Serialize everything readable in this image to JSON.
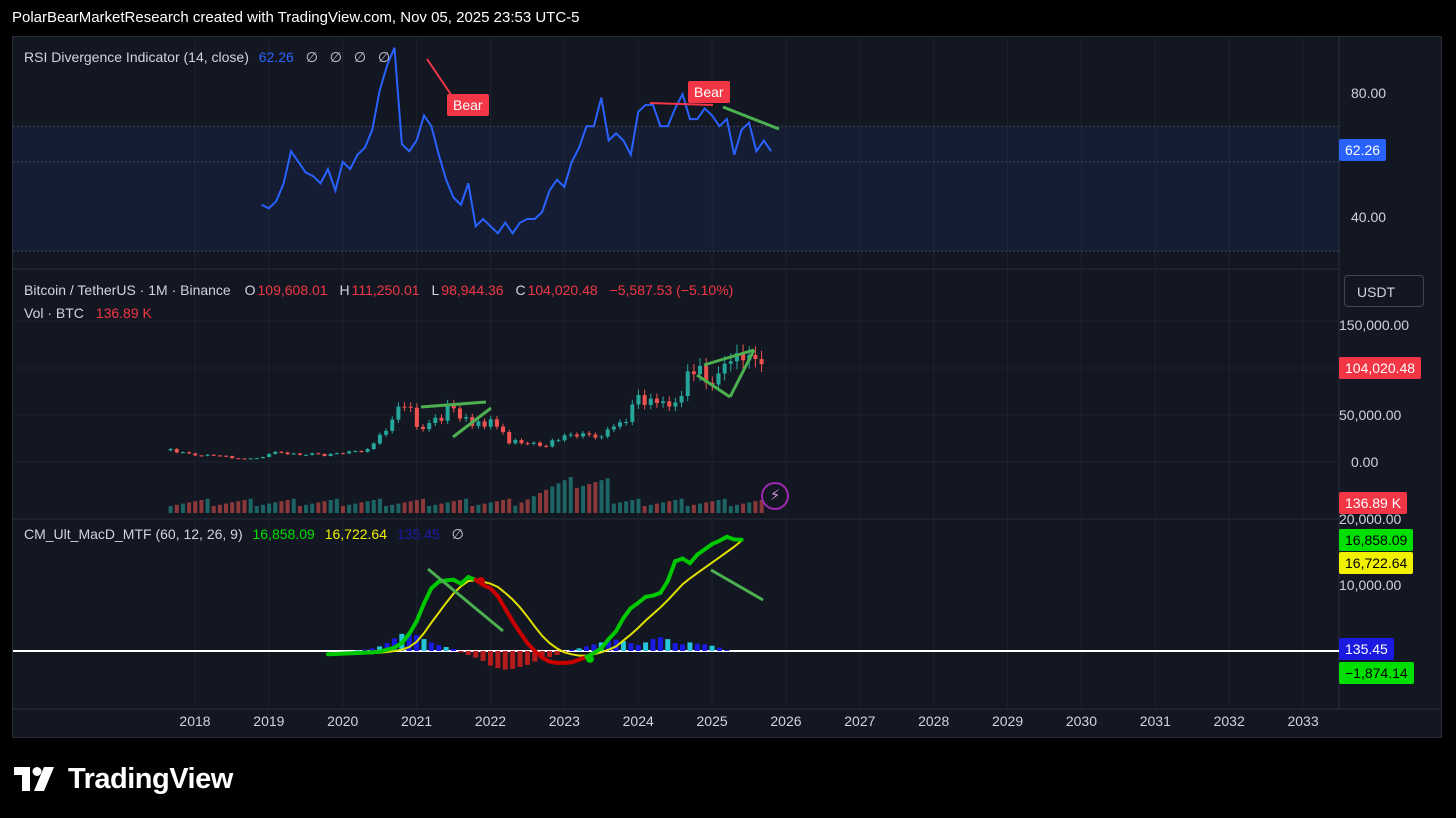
{
  "header": {
    "text": "PolarBearMarketResearch created with TradingView.com, Nov 05, 2025 23:53 UTC-5"
  },
  "footer": {
    "brand": "TradingView"
  },
  "colors": {
    "background": "#131722",
    "rsi_line": "#2962ff",
    "bull": "#26a69a",
    "bear": "#ef5350",
    "macd_up": "#00c800",
    "macd_down": "#c80000",
    "signal": "#e0e000",
    "trendline": "#4caf50",
    "bear_label": "#f23645"
  },
  "rsi_pane": {
    "legend_name": "RSI Divergence Indicator (14, close)",
    "legend_value": "62.26",
    "legend_empty": [
      "∅",
      "∅",
      "∅",
      "∅"
    ],
    "last_value_badge": "62.26",
    "axis_ticks": [
      "80.00",
      "40.00"
    ],
    "bear_labels": [
      "Bear",
      "Bear"
    ]
  },
  "price_pane": {
    "symbol_legend": "Bitcoin / TetherUS · 1M · Binance",
    "ohlc": {
      "o_label": "O",
      "o": "109,608.01",
      "h_label": "H",
      "h": "111,250.01",
      "l_label": "L",
      "l": "98,944.36",
      "c_label": "C",
      "c": "104,020.48",
      "change": "−5,587.53 (−5.10%)"
    },
    "vol_legend": "Vol · BTC",
    "vol_value": "136.89 K",
    "currency_button": "USDT",
    "axis_ticks": [
      "150,000.00",
      "50,000.00",
      "0.00"
    ],
    "last_price_badge": "104,020.48",
    "volume_badge": "136.89 K"
  },
  "macd_pane": {
    "legend_name": "CM_Ult_MacD_MTF (60, 12, 26, 9)",
    "macd_value": "16,858.09",
    "signal_value": "16,722.64",
    "hist_value": "135.45",
    "empty_marker": "∅",
    "axis_ticks": [
      "20,000.00",
      "10,000.00"
    ],
    "badges": {
      "macd": "16,858.09",
      "signal": "16,722.64",
      "hist": "135.45",
      "zero": "−1,874.14"
    }
  },
  "time_axis": [
    "2018",
    "2019",
    "2020",
    "2021",
    "2022",
    "2023",
    "2024",
    "2025",
    "2026",
    "2027",
    "2028",
    "2029",
    "2030",
    "2031",
    "2032",
    "2033"
  ],
  "chart_data": [
    {
      "type": "line",
      "name": "rsi",
      "ylim": [
        30,
        95
      ],
      "band": [
        35,
        70
      ],
      "midline": 60,
      "x": [
        2018.9,
        2019.0,
        2019.1,
        2019.2,
        2019.3,
        2019.4,
        2019.5,
        2019.6,
        2019.7,
        2019.8,
        2019.9,
        2020.0,
        2020.1,
        2020.2,
        2020.3,
        2020.4,
        2020.5,
        2020.6,
        2020.7,
        2020.8,
        2020.9,
        2021.0,
        2021.1,
        2021.2,
        2021.3,
        2021.4,
        2021.5,
        2021.6,
        2021.7,
        2021.8,
        2021.9,
        2022.0,
        2022.1,
        2022.2,
        2022.3,
        2022.4,
        2022.5,
        2022.6,
        2022.7,
        2022.8,
        2022.9,
        2023.0,
        2023.1,
        2023.2,
        2023.3,
        2023.4,
        2023.5,
        2023.6,
        2023.7,
        2023.8,
        2023.9,
        2024.0,
        2024.1,
        2024.2,
        2024.3,
        2024.4,
        2024.5,
        2024.6,
        2024.7,
        2024.8,
        2024.9,
        2025.0,
        2025.1,
        2025.2,
        2025.3,
        2025.4,
        2025.5,
        2025.6,
        2025.7,
        2025.8
      ],
      "y": [
        48,
        47,
        49,
        54,
        63,
        60,
        57,
        56,
        54,
        58,
        52,
        60,
        58,
        62,
        64,
        69,
        80,
        87,
        92,
        65,
        63,
        66,
        73,
        70,
        62,
        55,
        50,
        48,
        54,
        42,
        44,
        42,
        40,
        43,
        40,
        43,
        44,
        44,
        46,
        52,
        55,
        53,
        60,
        64,
        70,
        70,
        78,
        66,
        68,
        66,
        62,
        74,
        76,
        76,
        70,
        70,
        75,
        79,
        72,
        72,
        75,
        73,
        70,
        72,
        62,
        69,
        71,
        63,
        66,
        63
      ],
      "y_fill": [
        37,
        39,
        39,
        44,
        48,
        50,
        55,
        57,
        53,
        60,
        58,
        59,
        61,
        60,
        64,
        70,
        76,
        80,
        84,
        72,
        66,
        70,
        72,
        74,
        70,
        65,
        60,
        58,
        62,
        55,
        53,
        48,
        44,
        45,
        43,
        42,
        44,
        45,
        47,
        51,
        54,
        55,
        60,
        63,
        70,
        72,
        76,
        70,
        71,
        68,
        66,
        74,
        76,
        77,
        72,
        73,
        76,
        79,
        74,
        73,
        75,
        73,
        71,
        72,
        66,
        69,
        71,
        66,
        67,
        62
      ]
    },
    {
      "type": "candlestick",
      "name": "BTCUSDT 1M",
      "ylim": [
        -12000,
        165000
      ],
      "series_note_close": [
        13800,
        10200,
        10400,
        9100,
        7000,
        6600,
        7700,
        6900,
        6600,
        6300,
        4000,
        3700,
        3400,
        3800,
        4100,
        5300,
        8600,
        10800,
        10100,
        8300,
        9100,
        7600,
        7600,
        9300,
        8500,
        6400,
        8600,
        9400,
        9100,
        11300,
        11600,
        10800,
        13800,
        19700,
        29000,
        33100,
        45100,
        58900,
        58800,
        57700,
        37300,
        35000,
        41500,
        47100,
        43800,
        61300,
        57000,
        46200,
        47700,
        38400,
        43200,
        37600,
        45500,
        37700,
        31800,
        19900,
        23300,
        20000,
        19400,
        20500,
        17200,
        16500,
        23100,
        23100,
        28400,
        29200,
        27200,
        30500,
        29200,
        26000,
        27000,
        34600,
        37700,
        42200,
        42600,
        61200,
        71300,
        60700,
        67500,
        62700,
        64600,
        58900,
        63300,
        70200,
        96400,
        93400,
        102400,
        84300,
        82500,
        94200,
        104600,
        107100,
        115700,
        108200,
        114000,
        109600,
        104000
      ],
      "close_last": 104020.48,
      "volume_last": "136.89 K"
    },
    {
      "type": "line",
      "name": "macd",
      "ylim": [
        -8000,
        26000
      ],
      "x_start": 2019.8,
      "x_step": 0.1,
      "macd": [
        -500,
        -450,
        -400,
        -350,
        -300,
        -250,
        -200,
        -100,
        200,
        500,
        1200,
        2600,
        4500,
        7200,
        9500,
        10500,
        10700,
        10800,
        10200,
        11200,
        10800,
        10000,
        9500,
        8300,
        6400,
        4500,
        2800,
        1200,
        0,
        -1000,
        -1600,
        -1800,
        -1800,
        -1700,
        -1300,
        -900,
        -300,
        400,
        1800,
        3000,
        5000,
        6500,
        7300,
        8200,
        8400,
        8800,
        10600,
        13600,
        14000,
        13300,
        14600,
        15400,
        16200,
        16700,
        17300,
        16900,
        16858
      ],
      "signal": [
        -500,
        -500,
        -480,
        -450,
        -420,
        -380,
        -330,
        -270,
        -150,
        0,
        200,
        600,
        1400,
        2700,
        4300,
        5800,
        7300,
        8700,
        9800,
        10600,
        10700,
        10500,
        10200,
        9700,
        8800,
        7800,
        6600,
        5200,
        3700,
        2300,
        1200,
        400,
        -200,
        -500,
        -700,
        -700,
        -500,
        -200,
        200,
        700,
        1600,
        2500,
        3500,
        4600,
        5600,
        6600,
        7700,
        8900,
        10100,
        11000,
        11800,
        12600,
        13400,
        14200,
        15000,
        15800,
        16722
      ]
    },
    {
      "type": "bar",
      "name": "macd_histogram",
      "x_start": 2020.2,
      "x_step": 0.1,
      "values": [
        100,
        200,
        400,
        700,
        1200,
        1900,
        2600,
        2800,
        2400,
        1800,
        1300,
        900,
        600,
        300,
        -200,
        -600,
        -1000,
        -1500,
        -2200,
        -2600,
        -2800,
        -2700,
        -2400,
        -2100,
        -1600,
        -1200,
        -900,
        -600,
        -300,
        200,
        400,
        700,
        1000,
        1300,
        1500,
        1700,
        1500,
        1200,
        900,
        1300,
        1800,
        2100,
        1800,
        1200,
        1000,
        1300,
        1100,
        1000,
        800,
        500,
        135
      ]
    }
  ]
}
